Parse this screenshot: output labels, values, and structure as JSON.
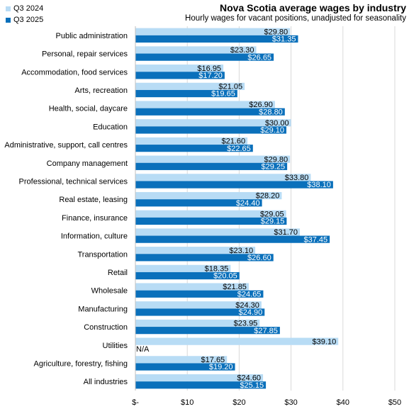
{
  "colors": {
    "q3_2024": "#b8dcf5",
    "q3_2025": "#0a70bb",
    "grid": "#d9d9d9",
    "axis": "#bfbfbf"
  },
  "legend": {
    "series1": "Q3 2024",
    "series2": "Q3 2025"
  },
  "chart_data": {
    "type": "bar",
    "orientation": "horizontal",
    "title": "Nova Scotia average wages by industry",
    "subtitle": "Hourly wages for vacant positions, unadjusted for seasonality",
    "legend_position": "top-left",
    "grid": true,
    "xlim": [
      0,
      50
    ],
    "ticks": [
      {
        "v": 0,
        "label": "$-"
      },
      {
        "v": 10,
        "label": "$10"
      },
      {
        "v": 20,
        "label": "$20"
      },
      {
        "v": 30,
        "label": "$30"
      },
      {
        "v": 40,
        "label": "$40"
      },
      {
        "v": 50,
        "label": "$50"
      }
    ],
    "categories": [
      "Public administration",
      "Personal, repair services",
      "Accommodation, food services",
      "Arts, recreation",
      "Health, social, daycare",
      "Education",
      "Administrative, support, call centres",
      "Company management",
      "Professional, technical services",
      "Real estate, leasing",
      "Finance, insurance",
      "Information, culture",
      "Transportation",
      "Retail",
      "Wholesale",
      "Manufacturing",
      "Construction",
      "Utilities",
      "Agriculture, forestry, fishing",
      "All industries"
    ],
    "series": [
      {
        "name": "Q3 2024",
        "values": [
          29.8,
          23.3,
          16.95,
          21.05,
          26.9,
          30.0,
          21.6,
          29.8,
          33.8,
          28.2,
          29.05,
          31.7,
          23.1,
          18.35,
          21.85,
          24.3,
          23.95,
          39.1,
          17.65,
          24.6
        ],
        "labels": [
          "$29.80",
          "$23.30",
          "$16.95",
          "$21.05",
          "$26.90",
          "$30.00",
          "$21.60",
          "$29.80",
          "$33.80",
          "$28.20",
          "$29.05",
          "$31.70",
          "$23.10",
          "$18.35",
          "$21.85",
          "$24.30",
          "$23.95",
          "$39.10",
          "$17.65",
          "$24.60"
        ]
      },
      {
        "name": "Q3 2025",
        "values": [
          31.35,
          26.65,
          17.2,
          19.65,
          28.8,
          29.1,
          22.65,
          29.25,
          38.1,
          24.4,
          29.15,
          37.45,
          26.6,
          20.05,
          24.65,
          24.9,
          27.85,
          null,
          19.2,
          25.15
        ],
        "labels": [
          "$31.35",
          "$26.65",
          "$17.20",
          "$19.65",
          "$28.80",
          "$29.10",
          "$22.65",
          "$29.25",
          "$38.10",
          "$24.40",
          "$29.15",
          "$37.45",
          "$26.60",
          "$20.05",
          "$24.65",
          "$24.90",
          "$27.85",
          "N/A",
          "$19.20",
          "$25.15"
        ]
      }
    ]
  }
}
